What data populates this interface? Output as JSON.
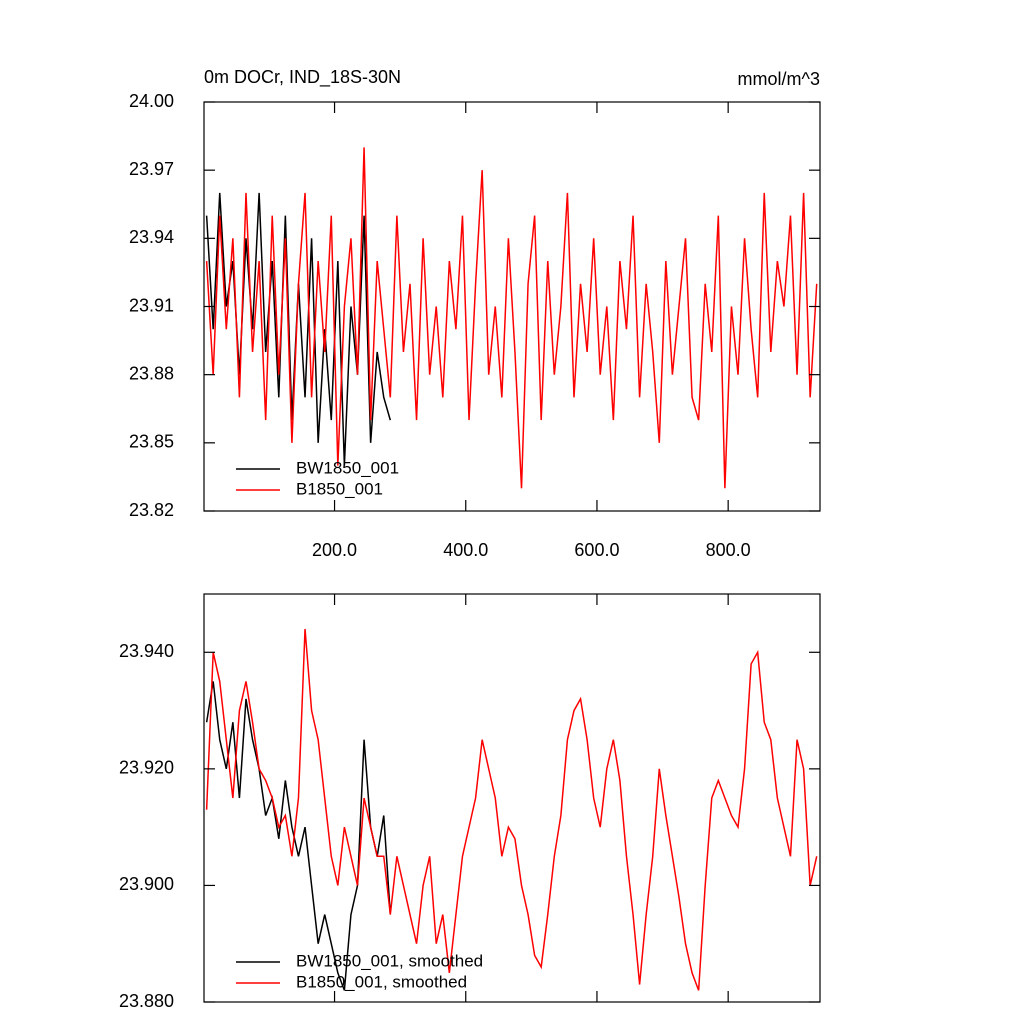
{
  "chart_data": [
    {
      "type": "line",
      "title": "0m DOCr, IND_18S-30N",
      "y_units_label": "mmol/m^3",
      "xlim": [
        1,
        940
      ],
      "xticks": [
        {
          "value": 200,
          "label": "200.0"
        },
        {
          "value": 400,
          "label": "400.0"
        },
        {
          "value": 600,
          "label": "600.0"
        },
        {
          "value": 800,
          "label": "800.0"
        }
      ],
      "ylim": [
        23.82,
        24.0
      ],
      "yticks": [
        23.82,
        23.85,
        23.88,
        23.91,
        23.94,
        23.97,
        {
          "value": 24.0,
          "label": "24.00"
        }
      ],
      "legend": "lower left",
      "series": [
        {
          "name": "BW1850_001",
          "color": "#000000",
          "x": [
            5,
            15,
            25,
            35,
            45,
            55,
            65,
            75,
            85,
            95,
            105,
            115,
            125,
            135,
            145,
            155,
            165,
            175,
            185,
            195,
            205,
            215,
            225,
            235,
            245,
            255,
            265,
            275,
            285
          ],
          "values": [
            23.95,
            23.9,
            23.96,
            23.91,
            23.93,
            23.88,
            23.94,
            23.9,
            23.96,
            23.89,
            23.93,
            23.87,
            23.95,
            23.86,
            23.92,
            23.87,
            23.94,
            23.85,
            23.9,
            23.86,
            23.93,
            23.84,
            23.91,
            23.88,
            23.95,
            23.85,
            23.89,
            23.87,
            23.86
          ]
        },
        {
          "name": "B1850_001",
          "color": "#ff0000",
          "x": [
            5,
            15,
            25,
            35,
            45,
            55,
            65,
            75,
            85,
            95,
            105,
            115,
            125,
            135,
            145,
            155,
            165,
            175,
            185,
            195,
            205,
            215,
            225,
            235,
            245,
            255,
            265,
            275,
            285,
            295,
            305,
            315,
            325,
            335,
            345,
            355,
            365,
            375,
            385,
            395,
            405,
            415,
            425,
            435,
            445,
            455,
            465,
            475,
            485,
            495,
            505,
            515,
            525,
            535,
            545,
            555,
            565,
            575,
            585,
            595,
            605,
            615,
            625,
            635,
            645,
            655,
            665,
            675,
            685,
            695,
            705,
            715,
            725,
            735,
            745,
            755,
            765,
            775,
            785,
            795,
            805,
            815,
            825,
            835,
            845,
            855,
            865,
            875,
            885,
            895,
            905,
            915,
            925,
            935
          ],
          "values": [
            23.93,
            23.88,
            23.95,
            23.9,
            23.94,
            23.87,
            23.96,
            23.89,
            23.93,
            23.86,
            23.95,
            23.88,
            23.94,
            23.85,
            23.92,
            23.96,
            23.87,
            23.93,
            23.89,
            23.95,
            23.84,
            23.91,
            23.94,
            23.88,
            23.98,
            23.86,
            23.93,
            23.9,
            23.87,
            23.95,
            23.89,
            23.92,
            23.86,
            23.94,
            23.88,
            23.91,
            23.87,
            23.93,
            23.9,
            23.95,
            23.86,
            23.92,
            23.97,
            23.88,
            23.91,
            23.87,
            23.94,
            23.89,
            23.83,
            23.92,
            23.95,
            23.86,
            23.93,
            23.88,
            23.91,
            23.96,
            23.87,
            23.92,
            23.89,
            23.94,
            23.88,
            23.91,
            23.86,
            23.93,
            23.9,
            23.95,
            23.87,
            23.92,
            23.89,
            23.85,
            23.93,
            23.88,
            23.91,
            23.94,
            23.87,
            23.86,
            23.92,
            23.89,
            23.95,
            23.83,
            23.91,
            23.88,
            23.94,
            23.9,
            23.87,
            23.96,
            23.89,
            23.93,
            23.91,
            23.95,
            23.88,
            23.96,
            23.87,
            23.92
          ]
        }
      ]
    },
    {
      "type": "line",
      "xlim": [
        1,
        940
      ],
      "xticks": [
        200,
        400,
        600,
        800
      ],
      "ylim": [
        23.88,
        23.95
      ],
      "yticks": [
        {
          "value": 23.88,
          "label": "23.880"
        },
        {
          "value": 23.9,
          "label": "23.900"
        },
        {
          "value": 23.92,
          "label": "23.920"
        },
        {
          "value": 23.94,
          "label": "23.940"
        }
      ],
      "legend": "lower left",
      "series": [
        {
          "name": "BW1850_001, smoothed",
          "color": "#000000",
          "x": [
            5,
            15,
            25,
            35,
            45,
            55,
            65,
            75,
            85,
            95,
            105,
            115,
            125,
            135,
            145,
            155,
            165,
            175,
            185,
            195,
            205,
            215,
            225,
            235,
            245,
            255,
            265,
            275,
            285
          ],
          "values": [
            23.928,
            23.935,
            23.925,
            23.92,
            23.928,
            23.915,
            23.932,
            23.925,
            23.92,
            23.912,
            23.915,
            23.908,
            23.918,
            23.91,
            23.905,
            23.91,
            23.9,
            23.89,
            23.895,
            23.89,
            23.885,
            23.882,
            23.895,
            23.9,
            23.925,
            23.91,
            23.905,
            23.912,
            23.895
          ]
        },
        {
          "name": "B1850_001, smoothed",
          "color": "#ff0000",
          "x": [
            5,
            15,
            25,
            35,
            45,
            55,
            65,
            75,
            85,
            95,
            105,
            115,
            125,
            135,
            145,
            155,
            165,
            175,
            185,
            195,
            205,
            215,
            225,
            235,
            245,
            255,
            265,
            275,
            285,
            295,
            305,
            315,
            325,
            335,
            345,
            355,
            365,
            375,
            385,
            395,
            405,
            415,
            425,
            435,
            445,
            455,
            465,
            475,
            485,
            495,
            505,
            515,
            525,
            535,
            545,
            555,
            565,
            575,
            585,
            595,
            605,
            615,
            625,
            635,
            645,
            655,
            665,
            675,
            685,
            695,
            705,
            715,
            725,
            735,
            745,
            755,
            765,
            775,
            785,
            795,
            805,
            815,
            825,
            835,
            845,
            855,
            865,
            875,
            885,
            895,
            905,
            915,
            925,
            935
          ],
          "values": [
            23.913,
            23.94,
            23.935,
            23.925,
            23.915,
            23.93,
            23.935,
            23.928,
            23.92,
            23.918,
            23.915,
            23.91,
            23.912,
            23.905,
            23.915,
            23.944,
            23.93,
            23.925,
            23.915,
            23.905,
            23.9,
            23.91,
            23.905,
            23.9,
            23.915,
            23.91,
            23.905,
            23.905,
            23.895,
            23.905,
            23.9,
            23.895,
            23.89,
            23.9,
            23.905,
            23.89,
            23.895,
            23.885,
            23.895,
            23.905,
            23.91,
            23.915,
            23.925,
            23.92,
            23.915,
            23.905,
            23.91,
            23.908,
            23.9,
            23.895,
            23.888,
            23.886,
            23.895,
            23.905,
            23.912,
            23.925,
            23.93,
            23.932,
            23.925,
            23.915,
            23.91,
            23.92,
            23.925,
            23.918,
            23.905,
            23.895,
            23.883,
            23.895,
            23.905,
            23.92,
            23.912,
            23.905,
            23.898,
            23.89,
            23.885,
            23.882,
            23.9,
            23.915,
            23.918,
            23.915,
            23.912,
            23.91,
            23.92,
            23.938,
            23.94,
            23.928,
            23.925,
            23.915,
            23.91,
            23.905,
            23.925,
            23.92,
            23.9,
            23.905
          ]
        }
      ]
    }
  ]
}
